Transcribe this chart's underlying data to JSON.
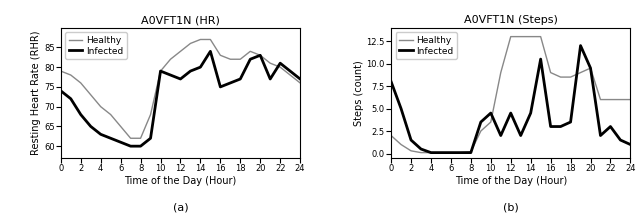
{
  "title_hr": "A0VFT1N (HR)",
  "title_steps": "A0VFT1N (Steps)",
  "xlabel": "Time of the Day (Hour)",
  "ylabel_hr": "Resting Heart Rate (RHR)",
  "ylabel_steps": "Steps (count)",
  "label_a": "(a)",
  "label_b": "(b)",
  "hours": [
    0,
    1,
    2,
    3,
    4,
    5,
    6,
    7,
    8,
    9,
    10,
    11,
    12,
    13,
    14,
    15,
    16,
    17,
    18,
    19,
    20,
    21,
    22,
    23,
    24
  ],
  "hr_healthy": [
    79,
    78,
    76,
    73,
    70,
    68,
    65,
    62,
    62,
    68,
    79,
    82,
    84,
    86,
    87,
    87,
    83,
    82,
    82,
    84,
    83,
    81,
    80,
    78,
    76
  ],
  "hr_infected": [
    74,
    72,
    68,
    65,
    63,
    62,
    61,
    60,
    60,
    62,
    79,
    78,
    77,
    79,
    80,
    84,
    75,
    76,
    77,
    82,
    83,
    77,
    81,
    79,
    77
  ],
  "steps_healthy": [
    2.0,
    1.0,
    0.3,
    0.1,
    0.1,
    0.1,
    0.1,
    0.1,
    0.2,
    2.5,
    3.5,
    9.0,
    13.0,
    13.0,
    13.0,
    13.0,
    9.0,
    8.5,
    8.5,
    9.0,
    9.5,
    6.0,
    6.0,
    6.0,
    6.0
  ],
  "steps_infected": [
    8.0,
    5.0,
    1.5,
    0.5,
    0.1,
    0.1,
    0.1,
    0.1,
    0.1,
    3.5,
    4.5,
    2.0,
    4.5,
    2.0,
    4.5,
    10.5,
    3.0,
    3.0,
    3.5,
    12.0,
    9.5,
    2.0,
    3.0,
    1.5,
    1.0
  ],
  "xticks": [
    0,
    2,
    4,
    6,
    8,
    10,
    12,
    14,
    16,
    18,
    20,
    22,
    24
  ],
  "hr_ylim": [
    57,
    90
  ],
  "hr_yticks": [
    60,
    65,
    70,
    75,
    80,
    85
  ],
  "steps_ylim": [
    -0.5,
    14
  ],
  "steps_yticks": [
    0.0,
    2.5,
    5.0,
    7.5,
    10.0,
    12.5
  ],
  "color_healthy": "#888888",
  "color_infected": "#000000",
  "lw_healthy": 1.0,
  "lw_infected": 2.0,
  "title_fontsize": 8,
  "label_fontsize": 7,
  "tick_fontsize": 6,
  "legend_fontsize": 6.5,
  "caption_fontsize": 8
}
